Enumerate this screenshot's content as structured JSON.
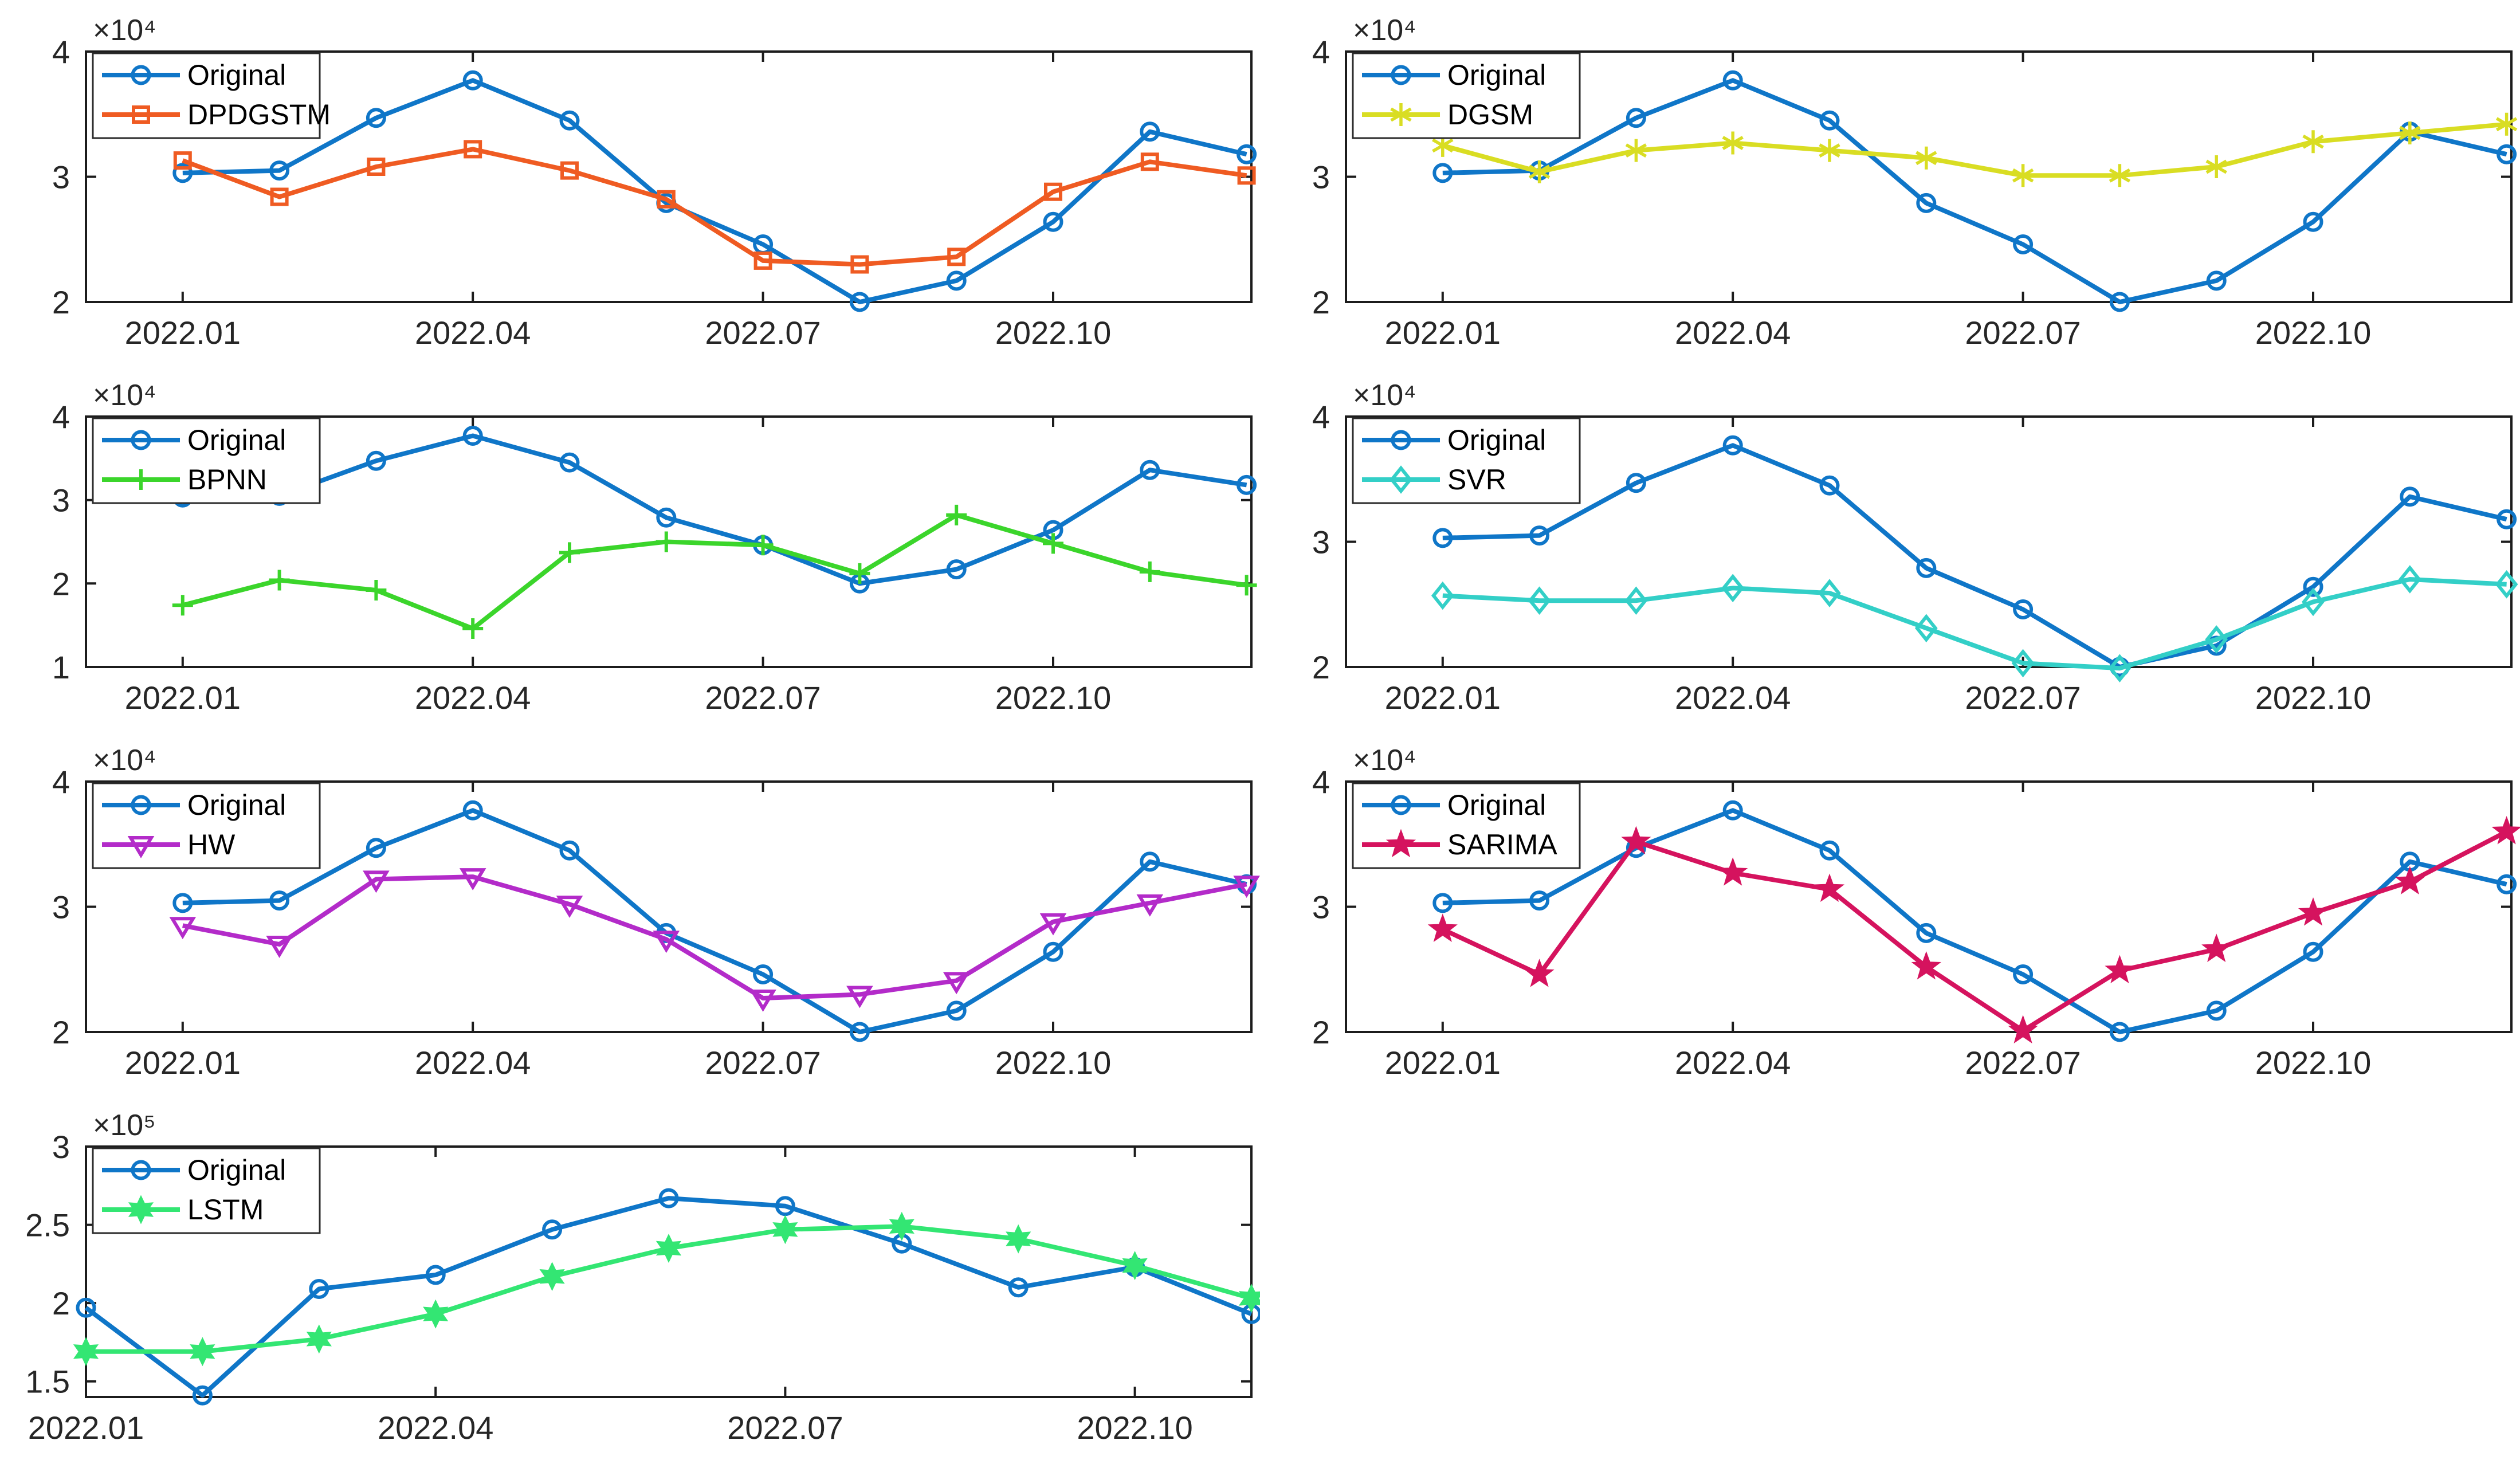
{
  "figure": {
    "background": "#ffffff",
    "axis_color": "#1c1c1c",
    "tick_label_color": "#262626",
    "legend_border_color": "#2b2b2b",
    "legend_background": "#ffffff"
  },
  "chart_data": [
    {
      "type": "line",
      "id": "original-vs-dpdgstm",
      "exponent_label": "×10⁴",
      "value_scale": 10000,
      "xlim": [
        0,
        12.05
      ],
      "ylim": [
        2,
        4
      ],
      "yticks": [
        2,
        3,
        4
      ],
      "ytick_labels": [
        "2",
        "3",
        "4"
      ],
      "xticks": [
        1,
        4,
        7,
        10
      ],
      "xtick_labels": [
        "2022.01",
        "2022.04",
        "2022.07",
        "2022.10"
      ],
      "x": [
        1,
        2,
        3,
        4,
        5,
        6,
        7,
        8,
        9,
        10,
        11,
        12
      ],
      "legend_position": "top-left",
      "series": [
        {
          "name": "Original",
          "color": "#0f76c8",
          "marker": "circle",
          "values": [
            30300,
            30500,
            34700,
            37700,
            34500,
            27900,
            24600,
            20000,
            21700,
            26400,
            33600,
            31800
          ]
        },
        {
          "name": "DPDGSTM",
          "color": "#ef5b22",
          "marker": "square",
          "values": [
            31300,
            28400,
            30800,
            32200,
            30500,
            28200,
            23300,
            23000,
            23600,
            28800,
            31200,
            30100
          ]
        }
      ]
    },
    {
      "type": "line",
      "id": "original-vs-dgsm",
      "exponent_label": "×10⁴",
      "value_scale": 10000,
      "xlim": [
        0,
        12.05
      ],
      "ylim": [
        2,
        4
      ],
      "yticks": [
        2,
        3,
        4
      ],
      "ytick_labels": [
        "2",
        "3",
        "4"
      ],
      "xticks": [
        1,
        4,
        7,
        10
      ],
      "xtick_labels": [
        "2022.01",
        "2022.04",
        "2022.07",
        "2022.10"
      ],
      "x": [
        1,
        2,
        3,
        4,
        5,
        6,
        7,
        8,
        9,
        10,
        11,
        12
      ],
      "legend_position": "top-left",
      "series": [
        {
          "name": "Original",
          "color": "#0f76c8",
          "marker": "circle",
          "values": [
            30300,
            30500,
            34700,
            37700,
            34500,
            27900,
            24600,
            20000,
            21700,
            26400,
            33600,
            31800
          ]
        },
        {
          "name": "DGSM",
          "color": "#d9dd23",
          "marker": "asterisk",
          "values": [
            32500,
            30400,
            32100,
            32700,
            32100,
            31500,
            30100,
            30100,
            30800,
            32800,
            33500,
            34200
          ]
        }
      ]
    },
    {
      "type": "line",
      "id": "original-vs-bpnn",
      "exponent_label": "×10⁴",
      "value_scale": 10000,
      "xlim": [
        0,
        12.05
      ],
      "ylim": [
        1,
        4
      ],
      "yticks": [
        1,
        2,
        3,
        4
      ],
      "ytick_labels": [
        "1",
        "2",
        "3",
        "4"
      ],
      "xticks": [
        1,
        4,
        7,
        10
      ],
      "xtick_labels": [
        "2022.01",
        "2022.04",
        "2022.07",
        "2022.10"
      ],
      "x": [
        1,
        2,
        3,
        4,
        5,
        6,
        7,
        8,
        9,
        10,
        11,
        12
      ],
      "legend_position": "top-left",
      "series": [
        {
          "name": "Original",
          "color": "#0f76c8",
          "marker": "circle",
          "values": [
            30300,
            30500,
            34700,
            37700,
            34500,
            27900,
            24600,
            20000,
            21700,
            26400,
            33600,
            31800
          ]
        },
        {
          "name": "BPNN",
          "color": "#3bd52b",
          "marker": "plus",
          "values": [
            17400,
            20400,
            19200,
            14600,
            23700,
            25000,
            24600,
            21200,
            28200,
            24800,
            21400,
            19800
          ]
        }
      ]
    },
    {
      "type": "line",
      "id": "original-vs-svr",
      "exponent_label": "×10⁴",
      "value_scale": 10000,
      "xlim": [
        0,
        12.05
      ],
      "ylim": [
        2,
        4
      ],
      "yticks": [
        2,
        3,
        4
      ],
      "ytick_labels": [
        "2",
        "3",
        "4"
      ],
      "xticks": [
        1,
        4,
        7,
        10
      ],
      "xtick_labels": [
        "2022.01",
        "2022.04",
        "2022.07",
        "2022.10"
      ],
      "x": [
        1,
        2,
        3,
        4,
        5,
        6,
        7,
        8,
        9,
        10,
        11,
        12
      ],
      "legend_position": "top-left",
      "series": [
        {
          "name": "Original",
          "color": "#0f76c8",
          "marker": "circle",
          "values": [
            30300,
            30500,
            34700,
            37700,
            34500,
            27900,
            24600,
            20000,
            21700,
            26400,
            33600,
            31800
          ]
        },
        {
          "name": "SVR",
          "color": "#33cfc7",
          "marker": "diamond",
          "values": [
            25700,
            25300,
            25300,
            26300,
            25900,
            23100,
            20300,
            19900,
            22200,
            25200,
            27000,
            26600
          ]
        }
      ]
    },
    {
      "type": "line",
      "id": "original-vs-hw",
      "exponent_label": "×10⁴",
      "value_scale": 10000,
      "xlim": [
        0,
        12.05
      ],
      "ylim": [
        2,
        4
      ],
      "yticks": [
        2,
        3,
        4
      ],
      "ytick_labels": [
        "2",
        "3",
        "4"
      ],
      "xticks": [
        1,
        4,
        7,
        10
      ],
      "xtick_labels": [
        "2022.01",
        "2022.04",
        "2022.07",
        "2022.10"
      ],
      "x": [
        1,
        2,
        3,
        4,
        5,
        6,
        7,
        8,
        9,
        10,
        11,
        12
      ],
      "legend_position": "top-left",
      "series": [
        {
          "name": "Original",
          "color": "#0f76c8",
          "marker": "circle",
          "values": [
            30300,
            30500,
            34700,
            37700,
            34500,
            27900,
            24600,
            20000,
            21700,
            26400,
            33600,
            31800
          ]
        },
        {
          "name": "HW",
          "color": "#b32bc9",
          "marker": "triangle-down",
          "values": [
            28500,
            27000,
            32200,
            32400,
            30200,
            27400,
            22700,
            23000,
            24100,
            28800,
            30300,
            31800
          ]
        }
      ]
    },
    {
      "type": "line",
      "id": "original-vs-sarima",
      "exponent_label": "×10⁴",
      "value_scale": 10000,
      "xlim": [
        0,
        12.05
      ],
      "ylim": [
        2,
        4
      ],
      "yticks": [
        2,
        3,
        4
      ],
      "ytick_labels": [
        "2",
        "3",
        "4"
      ],
      "xticks": [
        1,
        4,
        7,
        10
      ],
      "xtick_labels": [
        "2022.01",
        "2022.04",
        "2022.07",
        "2022.10"
      ],
      "x": [
        1,
        2,
        3,
        4,
        5,
        6,
        7,
        8,
        9,
        10,
        11,
        12
      ],
      "legend_position": "top-left",
      "series": [
        {
          "name": "Original",
          "color": "#0f76c8",
          "marker": "circle",
          "values": [
            30300,
            30500,
            34700,
            37700,
            34500,
            27900,
            24600,
            20000,
            21700,
            26400,
            33600,
            31800
          ]
        },
        {
          "name": "SARIMA",
          "color": "#d5135e",
          "marker": "star5",
          "values": [
            28200,
            24600,
            35200,
            32700,
            31400,
            25200,
            20100,
            24900,
            26600,
            29500,
            32000,
            36000
          ]
        }
      ]
    },
    {
      "type": "line",
      "id": "original-vs-lstm",
      "exponent_label": "×10⁵",
      "value_scale": 100000,
      "xlim": [
        1,
        11
      ],
      "ylim": [
        1.4,
        3
      ],
      "yticks": [
        1.5,
        2,
        2.5,
        3
      ],
      "ytick_labels": [
        "1.5",
        "2",
        "2.5",
        "3"
      ],
      "xticks": [
        1,
        4,
        7,
        10
      ],
      "xtick_labels": [
        "2022.01",
        "2022.04",
        "2022.07",
        "2022.10"
      ],
      "x": [
        1,
        2,
        3,
        4,
        5,
        6,
        7,
        8,
        9,
        10,
        11
      ],
      "legend_position": "top-left",
      "series": [
        {
          "name": "Original",
          "color": "#0f76c8",
          "marker": "circle",
          "values": [
            197000,
            141000,
            209000,
            218000,
            247000,
            267000,
            262000,
            238000,
            210000,
            223000,
            193000
          ]
        },
        {
          "name": "LSTM",
          "color": "#33e673",
          "marker": "hexagram",
          "values": [
            169000,
            169000,
            177000,
            193000,
            217000,
            235000,
            247000,
            249000,
            241000,
            224000,
            203000
          ]
        }
      ]
    }
  ]
}
